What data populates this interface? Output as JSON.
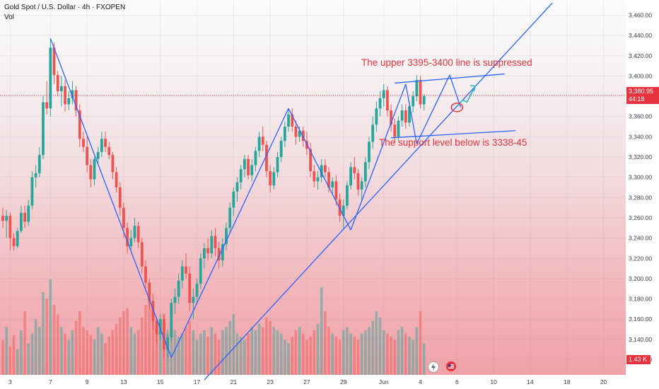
{
  "header": {
    "symbol": "Gold Spot / U.S. Dollar · 4h · FXOPEN",
    "volume_label": "Vol"
  },
  "colors": {
    "up": "#26a69a",
    "down": "#ef5350",
    "trendline": "#2962ff",
    "note": "#e8333f",
    "price_line": "#e8323d"
  },
  "current_price": {
    "value": "3,380.95",
    "countdown": "44:18"
  },
  "volume_last": "1.43 K",
  "annotations": {
    "resistance": "The upper 3395-3400 line is suppressed",
    "support": "The support level below is 3338-45"
  },
  "icons": [
    "lightning-icon",
    "flag-icon"
  ],
  "chart_data": {
    "type": "candlestick",
    "title": "Gold Spot / U.S. Dollar · 4h · FXOPEN",
    "y_ticks": [
      3120,
      3140,
      3160,
      3180,
      3200,
      3220,
      3240,
      3260,
      3280,
      3300,
      3320,
      3340,
      3360,
      3380,
      3400,
      3420,
      3440,
      3460
    ],
    "y_tick_labels": [
      "3,120.00",
      "3,140.00",
      "3,160.00",
      "3,180.00",
      "3,200.00",
      "3,220.00",
      "3,240.00",
      "3,260.00",
      "3,280.00",
      "3,300.00",
      "3,320.00",
      "3,340.00",
      "3,360.00",
      "3,380.00",
      "3,400.00",
      "3,420.00",
      "3,440.00",
      "3,460.00"
    ],
    "ylim": [
      3105,
      3475
    ],
    "x_tick_labels": [
      {
        "label": "3",
        "idx": 2
      },
      {
        "label": "7",
        "idx": 13
      },
      {
        "label": "9",
        "idx": 23
      },
      {
        "label": "13",
        "idx": 33
      },
      {
        "label": "15",
        "idx": 43
      },
      {
        "label": "17",
        "idx": 53
      },
      {
        "label": "21",
        "idx": 63
      },
      {
        "label": "23",
        "idx": 73
      },
      {
        "label": "27",
        "idx": 83
      },
      {
        "label": "29",
        "idx": 93
      },
      {
        "label": "Jun",
        "idx": 104
      },
      {
        "label": "4",
        "idx": 114
      },
      {
        "label": "6",
        "idx": 124
      },
      {
        "label": "10",
        "idx": 134
      },
      {
        "label": "14",
        "idx": 144
      },
      {
        "label": "18",
        "idx": 154
      },
      {
        "label": "20",
        "idx": 164
      }
    ],
    "last_price": 3380.95,
    "trendlines": [
      {
        "from": [
          13,
          3437
        ],
        "to": [
          46,
          3122
        ]
      },
      {
        "from": [
          46,
          3122
        ],
        "to": [
          78,
          3368
        ]
      },
      {
        "from": [
          78,
          3368
        ],
        "to": [
          95,
          3248
        ]
      },
      {
        "from": [
          95,
          3248
        ],
        "to": [
          110,
          3392
        ]
      },
      {
        "from": [
          110,
          3392
        ],
        "to": [
          113,
          3333
        ]
      },
      {
        "from": [
          113,
          3333
        ],
        "to": [
          122,
          3401
        ]
      },
      {
        "from": [
          122,
          3401
        ],
        "to": [
          125,
          3369
        ]
      },
      {
        "from": [
          55,
          3100
        ],
        "to": [
          150,
          3472
        ]
      },
      {
        "from": [
          107,
          3393
        ],
        "to": [
          137,
          3402
        ]
      },
      {
        "from": [
          106,
          3339
        ],
        "to": [
          140,
          3346
        ]
      }
    ],
    "projection_arrow": {
      "from": [
        124,
        3370
      ],
      "to": [
        129,
        3390
      ]
    },
    "highlight_circle": {
      "idx": 124,
      "value": 3369
    },
    "candles": [
      [
        3262,
        3270,
        3250,
        3257
      ],
      [
        3257,
        3268,
        3240,
        3262
      ],
      [
        3262,
        3265,
        3228,
        3240
      ],
      [
        3240,
        3245,
        3228,
        3232
      ],
      [
        3232,
        3250,
        3230,
        3247
      ],
      [
        3247,
        3272,
        3245,
        3265
      ],
      [
        3265,
        3272,
        3250,
        3256
      ],
      [
        3256,
        3278,
        3252,
        3272
      ],
      [
        3272,
        3306,
        3268,
        3300
      ],
      [
        3300,
        3312,
        3290,
        3304
      ],
      [
        3304,
        3330,
        3300,
        3322
      ],
      [
        3322,
        3380,
        3318,
        3374
      ],
      [
        3374,
        3395,
        3362,
        3368
      ],
      [
        3368,
        3437,
        3360,
        3428
      ],
      [
        3428,
        3433,
        3392,
        3401
      ],
      [
        3401,
        3405,
        3380,
        3385
      ],
      [
        3385,
        3400,
        3370,
        3390
      ],
      [
        3390,
        3396,
        3365,
        3372
      ],
      [
        3372,
        3385,
        3366,
        3378
      ],
      [
        3378,
        3395,
        3372,
        3386
      ],
      [
        3386,
        3390,
        3360,
        3366
      ],
      [
        3366,
        3372,
        3330,
        3338
      ],
      [
        3338,
        3345,
        3325,
        3330
      ],
      [
        3330,
        3340,
        3305,
        3312
      ],
      [
        3312,
        3318,
        3290,
        3298
      ],
      [
        3298,
        3320,
        3292,
        3318
      ],
      [
        3318,
        3330,
        3312,
        3325
      ],
      [
        3325,
        3345,
        3320,
        3338
      ],
      [
        3338,
        3345,
        3325,
        3330
      ],
      [
        3330,
        3335,
        3318,
        3322
      ],
      [
        3322,
        3325,
        3298,
        3305
      ],
      [
        3305,
        3310,
        3285,
        3290
      ],
      [
        3290,
        3295,
        3262,
        3270
      ],
      [
        3270,
        3275,
        3240,
        3250
      ],
      [
        3250,
        3255,
        3225,
        3232
      ],
      [
        3232,
        3248,
        3228,
        3240
      ],
      [
        3240,
        3260,
        3236,
        3252
      ],
      [
        3252,
        3256,
        3230,
        3236
      ],
      [
        3236,
        3240,
        3205,
        3212
      ],
      [
        3212,
        3218,
        3190,
        3196
      ],
      [
        3196,
        3200,
        3170,
        3178
      ],
      [
        3178,
        3185,
        3150,
        3158
      ],
      [
        3158,
        3162,
        3135,
        3145
      ],
      [
        3145,
        3165,
        3140,
        3160
      ],
      [
        3160,
        3165,
        3122,
        3130
      ],
      [
        3130,
        3150,
        3122,
        3142
      ],
      [
        3142,
        3180,
        3138,
        3176
      ],
      [
        3176,
        3190,
        3165,
        3182
      ],
      [
        3182,
        3205,
        3175,
        3198
      ],
      [
        3198,
        3218,
        3190,
        3212
      ],
      [
        3212,
        3225,
        3200,
        3205
      ],
      [
        3205,
        3212,
        3168,
        3176
      ],
      [
        3176,
        3190,
        3160,
        3182
      ],
      [
        3182,
        3200,
        3175,
        3195
      ],
      [
        3195,
        3225,
        3190,
        3220
      ],
      [
        3220,
        3235,
        3210,
        3230
      ],
      [
        3230,
        3240,
        3218,
        3225
      ],
      [
        3225,
        3248,
        3220,
        3242
      ],
      [
        3242,
        3250,
        3222,
        3230
      ],
      [
        3230,
        3236,
        3210,
        3218
      ],
      [
        3218,
        3240,
        3212,
        3234
      ],
      [
        3234,
        3255,
        3228,
        3250
      ],
      [
        3250,
        3275,
        3245,
        3270
      ],
      [
        3270,
        3290,
        3262,
        3286
      ],
      [
        3286,
        3300,
        3276,
        3295
      ],
      [
        3295,
        3312,
        3288,
        3308
      ],
      [
        3308,
        3322,
        3300,
        3318
      ],
      [
        3318,
        3322,
        3298,
        3302
      ],
      [
        3302,
        3318,
        3296,
        3312
      ],
      [
        3312,
        3330,
        3306,
        3326
      ],
      [
        3326,
        3345,
        3320,
        3340
      ],
      [
        3340,
        3350,
        3326,
        3332
      ],
      [
        3332,
        3336,
        3300,
        3306
      ],
      [
        3306,
        3312,
        3285,
        3292
      ],
      [
        3292,
        3310,
        3288,
        3305
      ],
      [
        3305,
        3325,
        3300,
        3320
      ],
      [
        3320,
        3340,
        3315,
        3336
      ],
      [
        3336,
        3355,
        3330,
        3350
      ],
      [
        3350,
        3368,
        3345,
        3362
      ],
      [
        3362,
        3368,
        3345,
        3350
      ],
      [
        3350,
        3356,
        3332,
        3340
      ],
      [
        3340,
        3350,
        3335,
        3346
      ],
      [
        3346,
        3350,
        3330,
        3336
      ],
      [
        3336,
        3345,
        3322,
        3328
      ],
      [
        3328,
        3334,
        3300,
        3306
      ],
      [
        3306,
        3312,
        3290,
        3296
      ],
      [
        3296,
        3306,
        3288,
        3300
      ],
      [
        3300,
        3318,
        3295,
        3312
      ],
      [
        3312,
        3318,
        3300,
        3305
      ],
      [
        3305,
        3310,
        3285,
        3290
      ],
      [
        3290,
        3300,
        3284,
        3296
      ],
      [
        3296,
        3302,
        3272,
        3278
      ],
      [
        3278,
        3284,
        3256,
        3262
      ],
      [
        3262,
        3278,
        3248,
        3272
      ],
      [
        3272,
        3296,
        3268,
        3292
      ],
      [
        3292,
        3315,
        3288,
        3310
      ],
      [
        3310,
        3320,
        3298,
        3304
      ],
      [
        3304,
        3308,
        3282,
        3288
      ],
      [
        3288,
        3300,
        3276,
        3296
      ],
      [
        3296,
        3320,
        3290,
        3315
      ],
      [
        3315,
        3340,
        3308,
        3335
      ],
      [
        3335,
        3360,
        3328,
        3352
      ],
      [
        3352,
        3375,
        3345,
        3368
      ],
      [
        3368,
        3385,
        3360,
        3378
      ],
      [
        3378,
        3392,
        3370,
        3386
      ],
      [
        3386,
        3390,
        3360,
        3366
      ],
      [
        3366,
        3372,
        3345,
        3352
      ],
      [
        3352,
        3358,
        3333,
        3340
      ],
      [
        3340,
        3360,
        3336,
        3356
      ],
      [
        3356,
        3372,
        3350,
        3366
      ],
      [
        3366,
        3372,
        3348,
        3354
      ],
      [
        3354,
        3375,
        3350,
        3370
      ],
      [
        3370,
        3385,
        3364,
        3380
      ],
      [
        3380,
        3401,
        3375,
        3396
      ],
      [
        3396,
        3400,
        3368,
        3372
      ],
      [
        3372,
        3382,
        3366,
        3380
      ]
    ],
    "volume": [
      22,
      30,
      18,
      25,
      16,
      28,
      40,
      20,
      26,
      35,
      30,
      52,
      48,
      60,
      44,
      38,
      30,
      26,
      22,
      28,
      34,
      40,
      30,
      28,
      25,
      22,
      30,
      26,
      20,
      24,
      28,
      32,
      36,
      40,
      42,
      30,
      26,
      28,
      36,
      44,
      50,
      40,
      35,
      30,
      38,
      26,
      32,
      28,
      24,
      26,
      30,
      34,
      28,
      22,
      26,
      28,
      24,
      30,
      26,
      22,
      28,
      30,
      34,
      38,
      26,
      24,
      22,
      26,
      30,
      28,
      32,
      30,
      36,
      34,
      30,
      28,
      26,
      22,
      20,
      24,
      28,
      30,
      26,
      22,
      24,
      28,
      32,
      55,
      40,
      30,
      26,
      24,
      22,
      28,
      30,
      26,
      24,
      22,
      26,
      28,
      30,
      34,
      40,
      36,
      28,
      26,
      24,
      22,
      28,
      30,
      26,
      24,
      22,
      30,
      40,
      20
    ]
  }
}
